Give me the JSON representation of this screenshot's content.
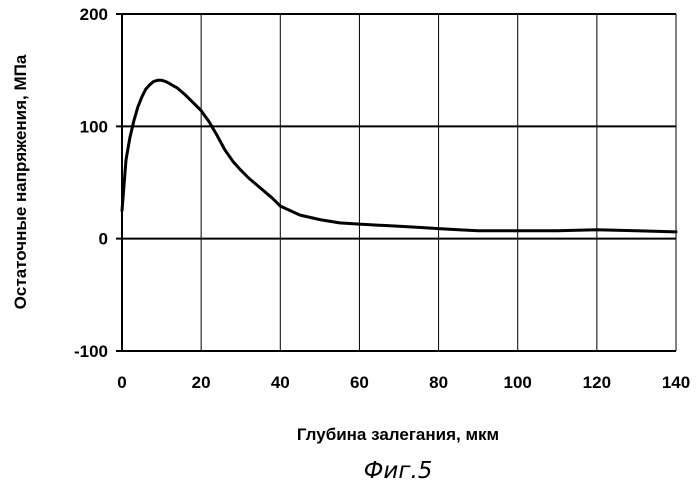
{
  "chart_data": {
    "type": "line",
    "xlabel": "Глубина залегания, мкм",
    "ylabel": "Остаточные напряжения, МПа",
    "caption": "Фиг.5",
    "xlim": [
      0,
      140
    ],
    "ylim": [
      -100,
      200
    ],
    "x_ticks": [
      "0",
      "20",
      "40",
      "60",
      "80",
      "100",
      "120",
      "140"
    ],
    "y_ticks": [
      "-100",
      "0",
      "100",
      "200"
    ],
    "grid": "vertical and horizontal at ticks",
    "series": [
      {
        "x": [
          0,
          1,
          2,
          3,
          4,
          5,
          6,
          7,
          8,
          9,
          10,
          11,
          12,
          14,
          16,
          18,
          20,
          22,
          24,
          26,
          28,
          30,
          32,
          35,
          38,
          40,
          45,
          50,
          55,
          60,
          65,
          70,
          75,
          80,
          85,
          90,
          95,
          100,
          110,
          120,
          130,
          140
        ],
        "y": [
          25,
          70,
          90,
          105,
          117,
          126,
          133,
          137,
          140,
          141,
          141,
          140,
          138,
          134,
          128,
          121,
          114,
          104,
          92,
          79,
          69,
          61,
          54,
          45,
          36,
          29,
          21,
          17,
          14,
          13,
          12,
          11,
          10,
          9,
          8,
          7,
          7,
          7,
          7,
          8,
          7,
          6
        ],
        "color": "#000000"
      }
    ]
  }
}
